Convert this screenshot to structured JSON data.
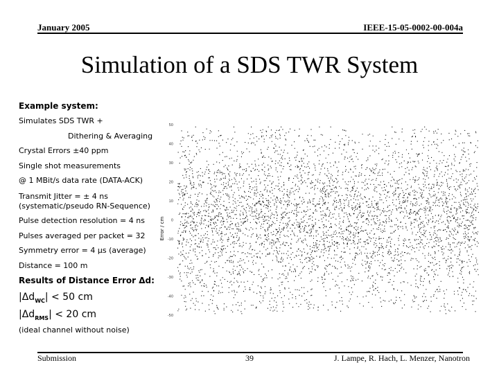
{
  "header": {
    "date": "January 2005",
    "doc_id": "IEEE-15-05-0002-00-004a"
  },
  "title": "Simulation of a SDS TWR System",
  "body": {
    "example_heading": "Example system:",
    "simulates": "Simulates SDS TWR +",
    "dithering": "Dithering & Averaging",
    "crystal": "Crystal Errors ±40 ppm",
    "single_shot": "Single shot measurements",
    "data_rate": "@ 1 MBit/s data rate (DATA-ACK)",
    "jitter_1": "Transmit Jitter = ± 4 ns",
    "jitter_2": "(systematic/pseudo RN-Sequence)",
    "pulse_res": "Pulse detection resolution = 4 ns",
    "pulses_avg": "Pulses averaged per packet = 32",
    "symmetry": "Symmetry error = 4 µs (average)",
    "distance": "Distance = 100 m",
    "results_heading": "Results of Distance Error Δd:",
    "wc_prefix": "|Δd",
    "wc_sub": "WC",
    "wc_suffix": "| < 50 cm",
    "rms_prefix": "|Δd",
    "rms_sub": "RMS",
    "rms_suffix": "| < 20 cm",
    "ideal": "(ideal channel without noise)"
  },
  "chart_data": {
    "type": "scatter",
    "ylabel": "Error / cm",
    "ylim": [
      -50,
      50
    ],
    "yticks": [
      "50",
      "40",
      "30",
      "20",
      "10",
      "0",
      "-10",
      "-20",
      "-30",
      "-40",
      "-50"
    ],
    "point_count": 9000,
    "point_color": "#111111"
  },
  "footer": {
    "left": "Submission",
    "page": "39",
    "authors": "J. Lampe, R. Hach, L. Menzer, Nanotron"
  }
}
